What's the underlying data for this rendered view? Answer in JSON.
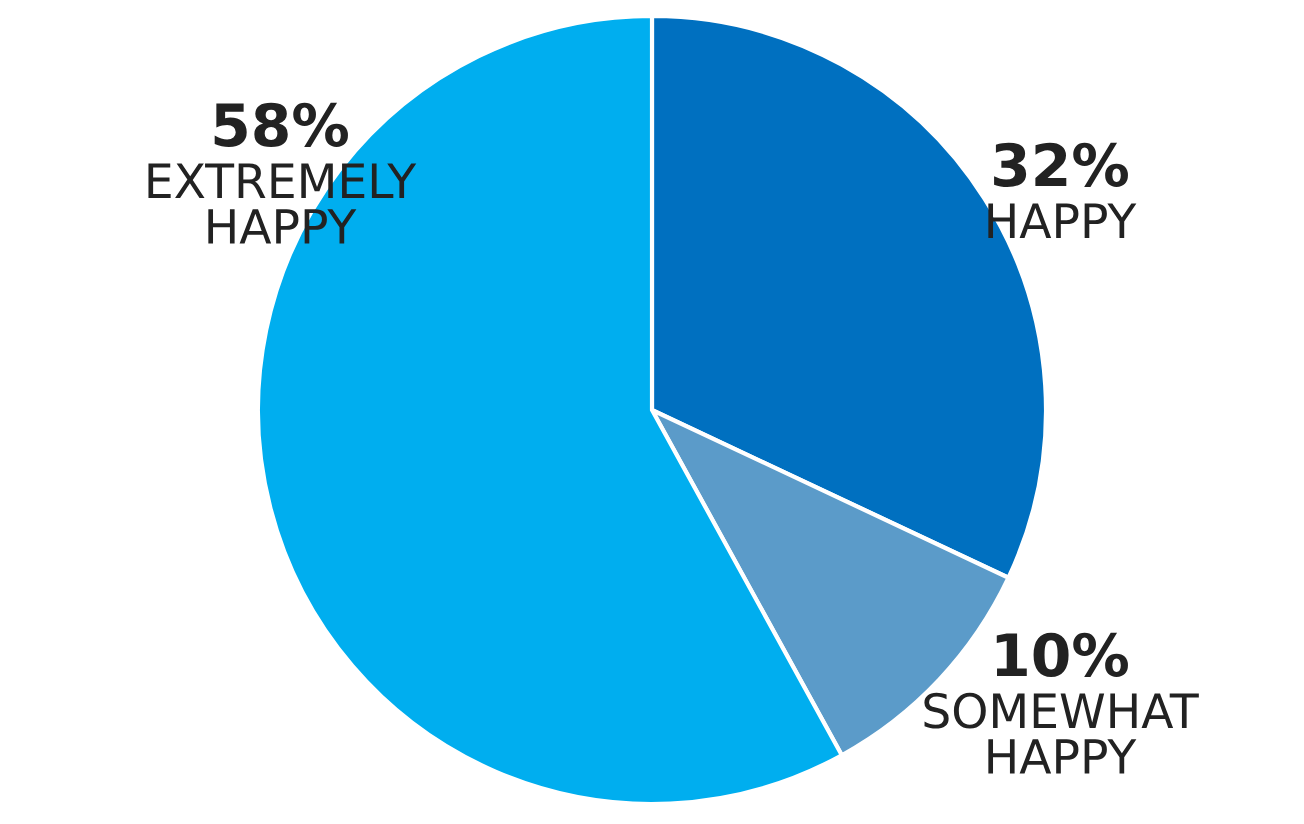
{
  "chart_data": {
    "type": "pie",
    "categories": [
      "HAPPY",
      "SOMEWHAT\nHAPPY",
      "EXTREMELY\nHAPPY"
    ],
    "values": [
      32,
      10,
      58
    ],
    "value_labels": [
      "32%",
      "10%",
      "58%"
    ],
    "colors": [
      "#0070c0",
      "#5b9bc9",
      "#00aeef"
    ]
  }
}
